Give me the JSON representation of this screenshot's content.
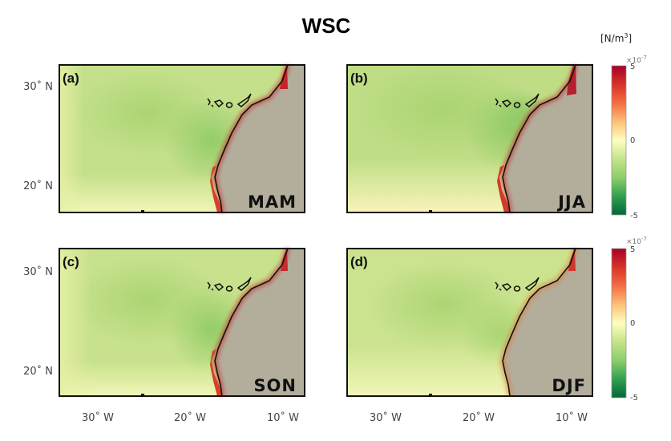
{
  "title": "WSC",
  "units_label": "[N/m3]",
  "units_base": "[N/m",
  "units_sup": "3",
  "units_close": "]",
  "colorbar": {
    "multiplier_text": "×10",
    "multiplier_exp": "-7",
    "ticks": [
      "5",
      "0",
      "-5"
    ],
    "range": [
      -5,
      5
    ],
    "colormap": "RdYlGn_r"
  },
  "axes": {
    "x_ticks": [
      "30˚ W",
      "20˚ W",
      "10˚ W"
    ],
    "y_ticks": [
      "30˚ N",
      "20˚ N"
    ]
  },
  "colors": {
    "ocean_green": "#c6e08a",
    "land": "#b3ae9c",
    "coast_red": "#c8242a",
    "island_outline": "#111111"
  },
  "chart_data": [
    {
      "type": "heatmap",
      "panel": "(a)",
      "season": "MAM",
      "xlim": [
        -35,
        -7.5
      ],
      "ylim": [
        17,
        32.5
      ],
      "variable": "WSC",
      "units": "N/m3 (x10^-7)",
      "clim": [
        -5,
        5
      ]
    },
    {
      "type": "heatmap",
      "panel": "(b)",
      "season": "JJA",
      "xlim": [
        -35,
        -7.5
      ],
      "ylim": [
        17,
        32.5
      ],
      "variable": "WSC",
      "units": "N/m3 (x10^-7)",
      "clim": [
        -5,
        5
      ]
    },
    {
      "type": "heatmap",
      "panel": "(c)",
      "season": "SON",
      "xlim": [
        -35,
        -7.5
      ],
      "ylim": [
        17,
        32.5
      ],
      "variable": "WSC",
      "units": "N/m3 (x10^-7)",
      "clim": [
        -5,
        5
      ]
    },
    {
      "type": "heatmap",
      "panel": "(d)",
      "season": "DJF",
      "xlim": [
        -35,
        -7.5
      ],
      "ylim": [
        17,
        32.5
      ],
      "variable": "WSC",
      "units": "N/m3 (x10^-7)",
      "clim": [
        -5,
        5
      ]
    }
  ]
}
